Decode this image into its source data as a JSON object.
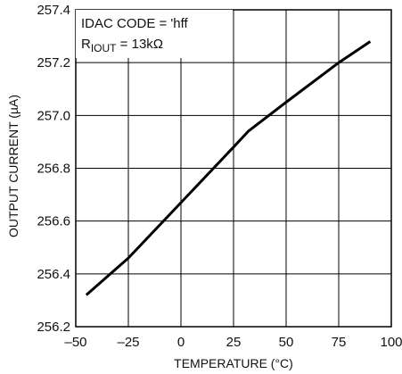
{
  "chart_data": {
    "type": "line",
    "xlabel": "TEMPERATURE (°C)",
    "ylabel": "OUTPUT CURRENT (µA)",
    "xlim": [
      -50,
      100
    ],
    "ylim": [
      256.2,
      257.4
    ],
    "x_ticks": [
      -50,
      -25,
      0,
      25,
      50,
      75,
      100
    ],
    "x_tick_labels": [
      "–50",
      "–25",
      "0",
      "25",
      "50",
      "75",
      "100"
    ],
    "y_ticks": [
      256.2,
      256.4,
      256.6,
      256.8,
      257.0,
      257.2,
      257.4
    ],
    "y_tick_labels": [
      "256.2",
      "256.4",
      "256.6",
      "256.8",
      "257.0",
      "257.2",
      "257.4"
    ],
    "grid": true,
    "annotation": {
      "line1": "IDAC CODE = 'hff",
      "line2_main": "R",
      "line2_sub": "IOUT",
      "line2_value": " = 13kΩ"
    },
    "series": [
      {
        "color": "#000000",
        "x": [
          -45,
          -25,
          0,
          25,
          32,
          50,
          75,
          90
        ],
        "y": [
          256.32,
          256.46,
          256.67,
          256.88,
          256.94,
          257.05,
          257.2,
          257.28
        ]
      }
    ]
  }
}
